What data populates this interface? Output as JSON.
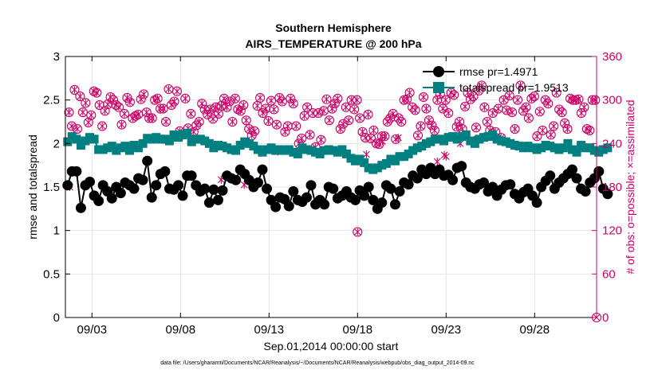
{
  "chart_data": {
    "type": "line",
    "title": "Southern Hemisphere",
    "subtitle": "AIRS_TEMPERATURE @ 200 hPa",
    "xlabel": "Sep.01,2014 00:00:00 start",
    "ylabel": "rmse and totalspread",
    "y2label": "# of obs: o=possible; ×=assimilated",
    "footnote": "data file: /Users/gharamti/Documents/NCAR/Reanalysis/~/Documents/NCAR/Reanalysis/webpub/obs_diag_output_2014-09.nc",
    "xlim": [
      1.5,
      31.5
    ],
    "ylim": [
      0,
      3
    ],
    "y2lim": [
      0,
      360
    ],
    "xticks": [
      3,
      8,
      13,
      18,
      23,
      28
    ],
    "xticklabels": [
      "09/03",
      "09/08",
      "09/13",
      "09/18",
      "09/23",
      "09/28"
    ],
    "yticks": [
      0,
      0.5,
      1,
      1.5,
      2,
      2.5,
      3
    ],
    "yticklabels": [
      "0",
      "0.5",
      "1",
      "1.5",
      "2",
      "2.5",
      "3"
    ],
    "y2ticks": [
      0,
      60,
      120,
      180,
      240,
      300,
      360
    ],
    "y2ticklabels": [
      "0",
      "60",
      "120",
      "180",
      "240",
      "300",
      "360"
    ],
    "x_step": 0.25,
    "x_start": 1.625,
    "legend_placement": "top-right",
    "series": [
      {
        "name": "rmse pr=1.4971",
        "color": "#000000",
        "marker": "circle",
        "axis": "left",
        "values": [
          1.52,
          1.68,
          1.68,
          1.26,
          1.52,
          1.56,
          1.4,
          1.34,
          1.52,
          1.45,
          1.37,
          1.5,
          1.43,
          1.55,
          1.52,
          1.48,
          1.6,
          1.58,
          1.8,
          1.38,
          1.52,
          1.65,
          1.68,
          1.48,
          1.47,
          1.52,
          1.4,
          1.63,
          1.63,
          1.52,
          1.45,
          1.48,
          1.32,
          1.47,
          1.35,
          1.46,
          1.63,
          1.6,
          1.58,
          1.7,
          1.65,
          1.58,
          1.5,
          1.55,
          1.7,
          1.48,
          1.35,
          1.27,
          1.38,
          1.36,
          1.28,
          1.45,
          1.35,
          1.33,
          1.38,
          1.52,
          1.3,
          1.35,
          1.3,
          1.5,
          1.48,
          1.37,
          1.4,
          1.45,
          1.38,
          1.35,
          1.46,
          1.4,
          1.5,
          1.35,
          1.25,
          1.32,
          1.52,
          1.48,
          1.3,
          1.45,
          1.55,
          1.53,
          1.63,
          1.6,
          1.7,
          1.65,
          1.72,
          1.65,
          1.7,
          1.63,
          1.64,
          1.58,
          1.72,
          1.74,
          1.55,
          1.5,
          1.48,
          1.53,
          1.55,
          1.45,
          1.5,
          1.4,
          1.47,
          1.52,
          1.53,
          1.42,
          1.37,
          1.44,
          1.48,
          1.4,
          1.32,
          1.5,
          1.57,
          1.63,
          1.48,
          1.55,
          1.6,
          1.65,
          1.7,
          1.6,
          1.48,
          1.45,
          1.55,
          1.6,
          1.68,
          1.48,
          1.42
        ]
      },
      {
        "name": "totalspread pr=1.9513",
        "color": "#008080",
        "marker": "square",
        "axis": "left",
        "values": [
          2.02,
          2.08,
          2.05,
          1.98,
          2.03,
          2.07,
          2.05,
          1.93,
          1.93,
          1.95,
          1.97,
          1.92,
          1.95,
          1.97,
          1.92,
          1.98,
          1.95,
          2.0,
          2.06,
          2.05,
          2.07,
          2.05,
          2.05,
          2.03,
          2.1,
          2.07,
          2.1,
          2.12,
          2.02,
          2.05,
          2.05,
          2.03,
          2.0,
          1.95,
          1.98,
          1.97,
          1.95,
          1.93,
          1.92,
          1.98,
          2.02,
          2.0,
          1.97,
          1.93,
          1.9,
          1.93,
          1.95,
          1.92,
          1.93,
          1.92,
          1.93,
          1.9,
          1.88,
          1.95,
          1.93,
          1.92,
          1.9,
          1.88,
          1.92,
          1.93,
          1.92,
          1.9,
          1.93,
          1.88,
          1.83,
          1.8,
          1.82,
          1.78,
          1.72,
          1.7,
          1.72,
          1.75,
          1.77,
          1.82,
          1.8,
          1.85,
          1.85,
          1.88,
          1.92,
          1.95,
          1.97,
          2.0,
          2.02,
          2.05,
          2.05,
          2.03,
          2.07,
          2.08,
          2.05,
          2.08,
          2.1,
          2.03,
          2.0,
          2.05,
          2.07,
          2.08,
          2.1,
          2.05,
          2.03,
          2.02,
          2.0,
          1.98,
          1.97,
          1.95,
          1.97,
          1.95,
          1.93,
          1.95,
          1.98,
          1.97,
          1.95,
          1.93,
          1.95,
          2.0,
          1.93,
          1.9,
          1.98,
          1.95,
          1.95,
          1.92,
          1.9,
          1.93,
          1.95
        ]
      },
      {
        "name": "",
        "color": "#cc0066",
        "marker": "circle-open",
        "axis": "right",
        "values": [
          283,
          264,
          314,
          260,
          305,
          283,
          296,
          269,
          279,
          312,
          310,
          293,
          264,
          285,
          294,
          304,
          300,
          293,
          290,
          266,
          281,
          303,
          297,
          275,
          278,
          280,
          301,
          308,
          283,
          275,
          275,
          300,
          302,
          288,
          288,
          270,
          315,
          293,
          298,
          312,
          257,
          252,
          302,
          261,
          281,
          256,
          265,
          270,
          295,
          287,
          280,
          287,
          274,
          290,
          281,
          292,
          302,
          290,
          298,
          270,
          302,
          287,
          285,
          293,
          272,
          260,
          251,
          257,
          292,
          303,
          282,
          288,
          271,
          299,
          287,
          266,
          303,
          298,
          256,
          264,
          302,
          295,
          264,
          240,
          247,
          278,
          290,
          252,
          282,
          235,
          282,
          245,
          285,
          301,
          272,
          288,
          295,
          302,
          260,
          267,
          290,
          272,
          300,
          287,
          300,
          275,
          256,
          248,
          280,
          247,
          258,
          240,
          239,
          250,
          250,
          270,
          275,
          281,
          246,
          275,
          270,
          300,
          301,
          310,
          290,
          286,
          251,
          264,
          304,
          288,
          272,
          265,
          258,
          300,
          308,
          288,
          300,
          282,
          310,
          307,
          263,
          270,
          260,
          291,
          310,
          301,
          305,
          262,
          313,
          320,
          290,
          270,
          258,
          282,
          256,
          288,
          248,
          300,
          286,
          306,
          283,
          260,
          300,
          320,
          285,
          290,
          275,
          302,
          305,
          250,
          284,
          258,
          300,
          295,
          252,
          264,
          310,
          287,
          283,
          268,
          260,
          302,
          300,
          300,
          301,
          282,
          290,
          260,
          258,
          300,
          300
        ]
      },
      {
        "name": "",
        "color": "#cc0066",
        "marker": "x",
        "axis": "right",
        "values": [
          180,
          175,
          246,
          247,
          229,
          182,
          190,
          183,
          216,
          225,
          243,
          248,
          215,
          222,
          240,
          245,
          224
        ]
      }
    ]
  }
}
